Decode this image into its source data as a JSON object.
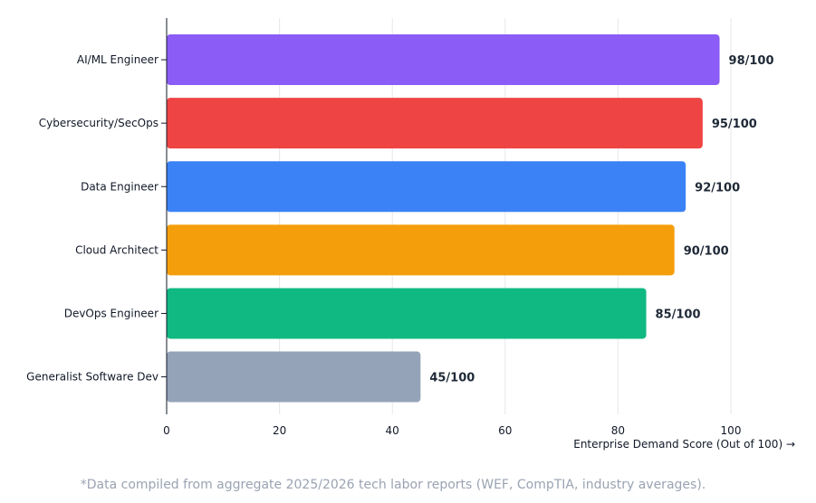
{
  "chart_data": {
    "type": "bar",
    "orientation": "horizontal",
    "categories": [
      "AI/ML Engineer",
      "Cybersecurity/SecOps",
      "Data Engineer",
      "Cloud Architect",
      "DevOps Engineer",
      "Generalist Software Dev"
    ],
    "values": [
      98,
      95,
      92,
      90,
      85,
      45
    ],
    "value_labels": [
      "98/100",
      "95/100",
      "92/100",
      "90/100",
      "85/100",
      "45/100"
    ],
    "colors": [
      "#8b5cf6",
      "#ef4444",
      "#3b82f6",
      "#f59e0b",
      "#10b981",
      "#94a3b8"
    ],
    "xlabel": "Enterprise Demand Score (Out of 100) →",
    "xlim": [
      0,
      100
    ],
    "xticks": [
      0,
      20,
      40,
      60,
      80,
      100
    ],
    "grid": "vertical"
  },
  "footnote": "*Data compiled from aggregate 2025/2026 tech labor reports (WEF, CompTIA, industry averages)."
}
